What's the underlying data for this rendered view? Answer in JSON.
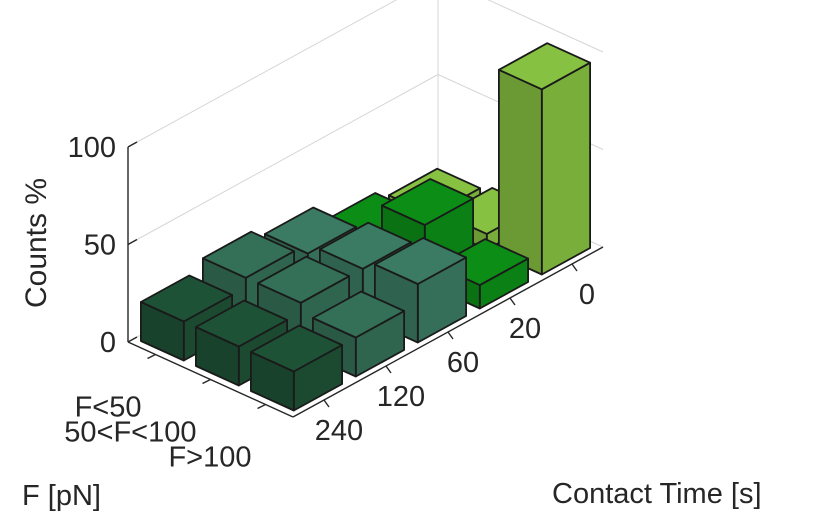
{
  "chart_data": {
    "type": "bar3d",
    "zlabel": "Counts %",
    "xlabel": "F [pN]",
    "ylabel": "Contact Time [s]",
    "zlim": [
      0,
      100
    ],
    "z_ticks": [
      "0",
      "50",
      "100"
    ],
    "force_categories": [
      "F<50",
      "50<F<100",
      "F>100"
    ],
    "time_categories": [
      "0",
      "20",
      "60",
      "120",
      "240"
    ],
    "values": {
      "0": [
        5,
        8,
        95
      ],
      "20": [
        10,
        30,
        12
      ],
      "60": [
        20,
        25,
        30
      ],
      "120": [
        25,
        25,
        20
      ],
      "240": [
        20,
        20,
        20
      ]
    },
    "colors": {
      "0": "#86c142",
      "20": "#0c8e16",
      "60": "#3b7a63",
      "120": "#346f58",
      "240": "#1e5236"
    },
    "grid": true
  }
}
